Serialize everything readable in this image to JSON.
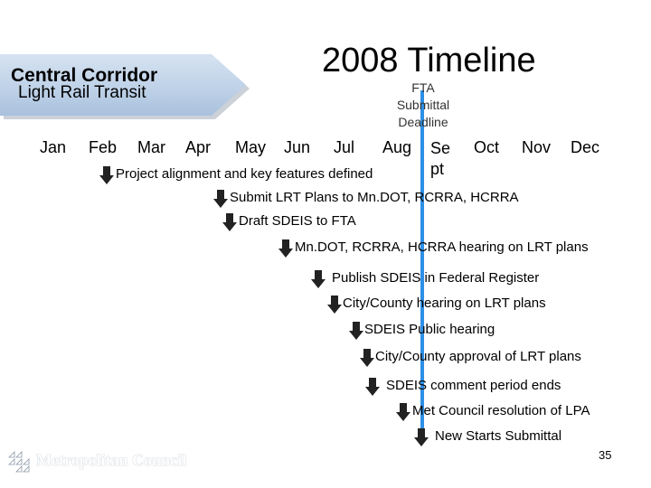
{
  "banner": {
    "title": "Central Corridor",
    "subtitle": "Light Rail Transit"
  },
  "title": "2008 Timeline",
  "deadline": {
    "label": "FTA\nSubmittal\nDeadline",
    "color": "#2e8fe6"
  },
  "months": [
    "Jan",
    "Feb",
    "Mar",
    "Apr",
    "May",
    "Jun",
    "Jul",
    "Aug",
    "Se\npt",
    "Oct",
    "Nov",
    "Dec"
  ],
  "milestones": [
    "Project alignment and key features defined",
    "Submit LRT Plans to Mn.DOT, RCRRA, HCRRA",
    "Draft SDEIS to FTA",
    "Mn.DOT, RCRRA, HCRRA hearing on LRT plans",
    "Publish SDEIS in Federal Register",
    "City/County hearing on LRT plans",
    "SDEIS Public hearing",
    "City/County approval of LRT plans",
    "SDEIS comment period ends",
    "Met Council resolution of LPA",
    "New Starts Submittal"
  ],
  "footer": {
    "logo": "Metropolitan Council",
    "page": "35"
  }
}
